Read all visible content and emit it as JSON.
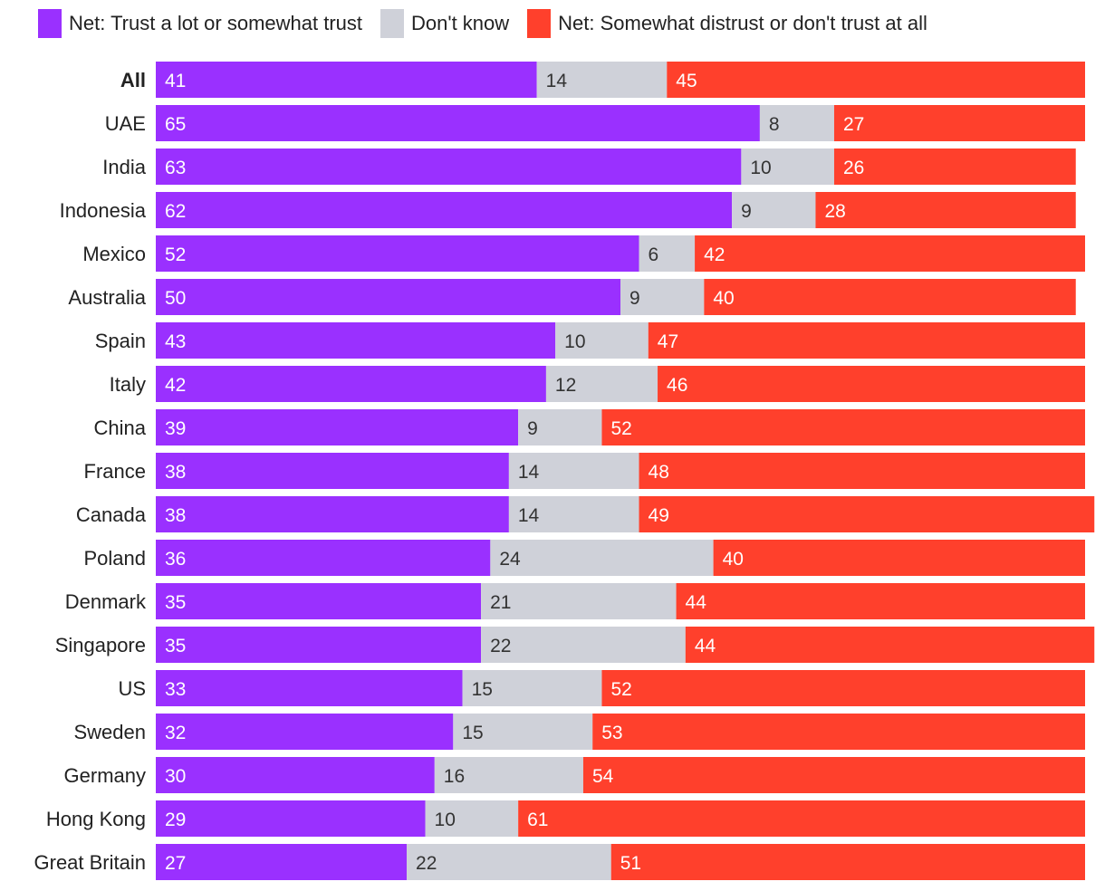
{
  "colors": {
    "trust": "#9a30ff",
    "dont_know": "#cfd1d9",
    "distrust": "#ff402c"
  },
  "legend": [
    {
      "label": "Net: Trust a lot or somewhat trust",
      "color_key": "trust"
    },
    {
      "label": "Don't know",
      "color_key": "dont_know"
    },
    {
      "label": "Net: Somewhat distrust or don't trust at all",
      "color_key": "distrust"
    }
  ],
  "chart_data": {
    "type": "bar",
    "orientation": "horizontal",
    "stacked": true,
    "title": "",
    "xlabel": "",
    "ylabel": "",
    "xlim": [
      0,
      100
    ],
    "grid": false,
    "legend_position": "top-left",
    "categories": [
      "All",
      "UAE",
      "India",
      "Indonesia",
      "Mexico",
      "Australia",
      "Spain",
      "Italy",
      "China",
      "France",
      "Canada",
      "Poland",
      "Denmark",
      "Singapore",
      "US",
      "Sweden",
      "Germany",
      "Hong Kong",
      "Great Britain"
    ],
    "series": [
      {
        "name": "Net: Trust a lot or somewhat trust",
        "values": [
          41,
          65,
          63,
          62,
          52,
          50,
          43,
          42,
          39,
          38,
          38,
          36,
          35,
          35,
          33,
          32,
          30,
          29,
          27
        ]
      },
      {
        "name": "Don't know",
        "values": [
          14,
          8,
          10,
          9,
          6,
          9,
          10,
          12,
          9,
          14,
          14,
          24,
          21,
          22,
          15,
          15,
          16,
          10,
          22
        ]
      },
      {
        "name": "Net: Somewhat distrust or don't trust at all",
        "values": [
          45,
          27,
          26,
          28,
          42,
          40,
          47,
          46,
          52,
          48,
          49,
          40,
          44,
          44,
          52,
          53,
          54,
          61,
          51
        ]
      }
    ],
    "data_labels": true,
    "emphasized_category": "All"
  }
}
